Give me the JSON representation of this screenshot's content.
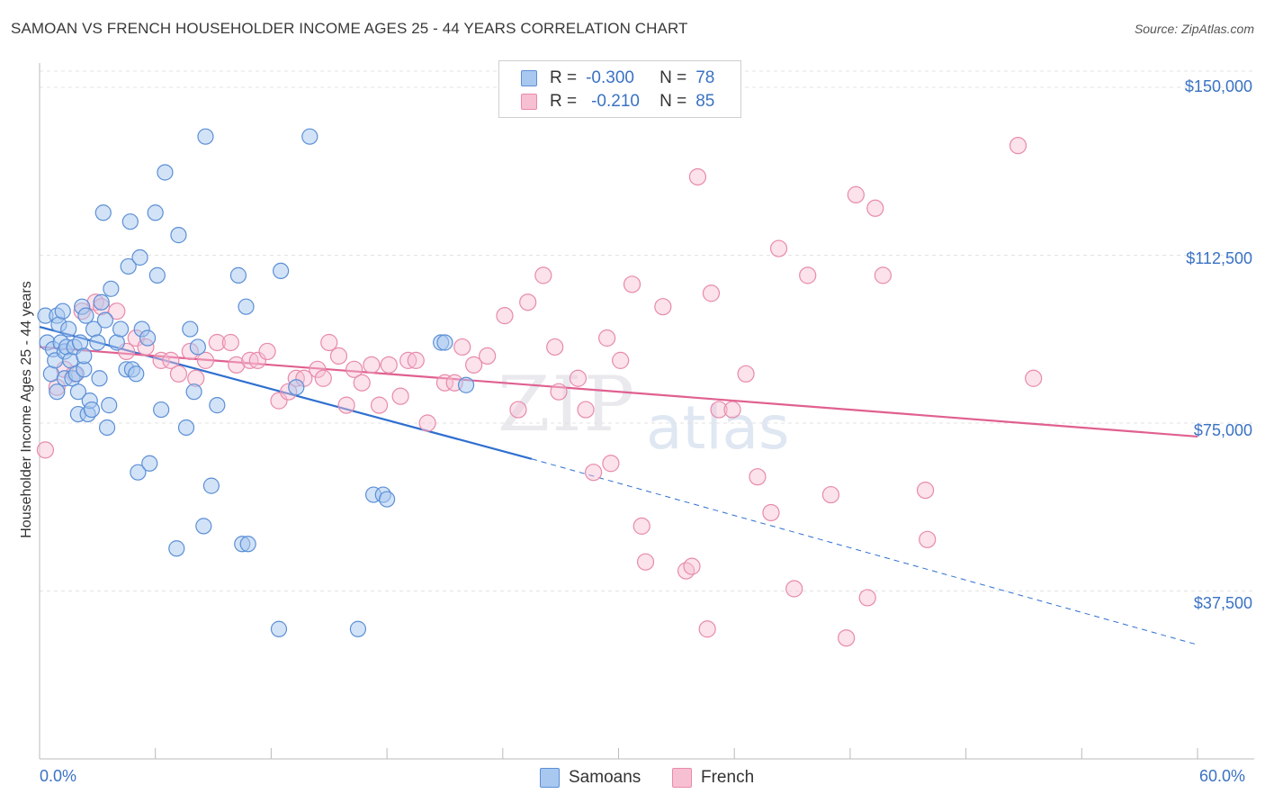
{
  "header": {
    "title": "SAMOAN VS FRENCH HOUSEHOLDER INCOME AGES 25 - 44 YEARS CORRELATION CHART",
    "source": "Source: ZipAtlas.com"
  },
  "watermark": {
    "zip": "ZIP",
    "atlas": "atlas"
  },
  "legend": {
    "samoans": {
      "r_label": "R =",
      "r_value": "-0.300",
      "n_label": "N =",
      "n_value": "78"
    },
    "french": {
      "r_label": "R =",
      "r_value": "-0.210",
      "n_label": "N =",
      "n_value": "85"
    }
  },
  "colors": {
    "samoans_fill": "#a8c8f0",
    "samoans_stroke": "#5b8fd6",
    "samoans_line": "#2f6fd0",
    "french_fill": "#f7bfd2",
    "french_stroke": "#e88aab",
    "french_line": "#e06090",
    "grid": "#e3e3e3",
    "tick_text": "#3a72c4"
  },
  "chart_data": {
    "type": "scatter",
    "title": "SAMOAN VS FRENCH HOUSEHOLDER INCOME AGES 25 - 44 YEARS CORRELATION CHART",
    "xlabel": "",
    "ylabel": "Householder Income Ages 25 - 44 years",
    "xlim": [
      0,
      60
    ],
    "ylim": [
      0,
      153000
    ],
    "x_tick_labels": [
      "0.0%",
      "60.0%"
    ],
    "y_ticks": [
      37500,
      75000,
      112500,
      150000
    ],
    "y_tick_labels": [
      "$37,500",
      "$75,000",
      "$112,500",
      "$150,000"
    ],
    "grid": true,
    "legend_position": "top-center",
    "series": [
      {
        "name": "Samoans",
        "trend": {
          "x": [
            0,
            25.5
          ],
          "y": [
            96500,
            67000
          ],
          "dashed_to": [
            60,
            25500
          ]
        },
        "points": [
          [
            0.3,
            99000
          ],
          [
            0.4,
            93000
          ],
          [
            0.6,
            86000
          ],
          [
            0.7,
            91500
          ],
          [
            0.8,
            89000
          ],
          [
            0.9,
            99000
          ],
          [
            1.0,
            97000
          ],
          [
            1.1,
            93000
          ],
          [
            1.2,
            100000
          ],
          [
            1.3,
            91000
          ],
          [
            1.3,
            85000
          ],
          [
            1.4,
            92000
          ],
          [
            1.5,
            96000
          ],
          [
            1.6,
            89000
          ],
          [
            1.7,
            85000
          ],
          [
            1.8,
            92000
          ],
          [
            1.9,
            86000
          ],
          [
            2.0,
            82000
          ],
          [
            2.0,
            77000
          ],
          [
            2.1,
            93000
          ],
          [
            2.2,
            101000
          ],
          [
            2.3,
            87000
          ],
          [
            2.3,
            90000
          ],
          [
            2.4,
            99000
          ],
          [
            2.5,
            77000
          ],
          [
            2.6,
            80000
          ],
          [
            2.7,
            78000
          ],
          [
            2.8,
            96000
          ],
          [
            3.0,
            93000
          ],
          [
            3.1,
            85000
          ],
          [
            3.2,
            102000
          ],
          [
            3.3,
            122000
          ],
          [
            3.4,
            98000
          ],
          [
            3.5,
            74000
          ],
          [
            3.6,
            79000
          ],
          [
            3.7,
            105000
          ],
          [
            4.0,
            93000
          ],
          [
            4.2,
            96000
          ],
          [
            4.5,
            87000
          ],
          [
            4.6,
            110000
          ],
          [
            4.7,
            120000
          ],
          [
            4.8,
            87000
          ],
          [
            5.0,
            86000
          ],
          [
            5.1,
            64000
          ],
          [
            5.2,
            112000
          ],
          [
            5.3,
            96000
          ],
          [
            5.6,
            94000
          ],
          [
            5.7,
            66000
          ],
          [
            6.0,
            122000
          ],
          [
            6.1,
            108000
          ],
          [
            6.3,
            78000
          ],
          [
            6.5,
            131000
          ],
          [
            7.2,
            117000
          ],
          [
            7.6,
            74000
          ],
          [
            7.8,
            96000
          ],
          [
            8.0,
            82000
          ],
          [
            8.2,
            92000
          ],
          [
            8.5,
            52000
          ],
          [
            8.6,
            139000
          ],
          [
            8.9,
            61000
          ],
          [
            9.2,
            79000
          ],
          [
            10.3,
            108000
          ],
          [
            10.5,
            48000
          ],
          [
            10.7,
            101000
          ],
          [
            10.8,
            48000
          ],
          [
            12.4,
            29000
          ],
          [
            12.5,
            109000
          ],
          [
            13.3,
            83000
          ],
          [
            14.0,
            139000
          ],
          [
            16.5,
            29000
          ],
          [
            17.3,
            59000
          ],
          [
            17.8,
            59000
          ],
          [
            18.0,
            58000
          ],
          [
            20.8,
            93000
          ],
          [
            21.0,
            93000
          ],
          [
            22.1,
            83500
          ],
          [
            0.9,
            82000
          ],
          [
            7.1,
            47000
          ]
        ]
      },
      {
        "name": "French",
        "trend": {
          "x": [
            0,
            60
          ],
          "y": [
            92000,
            72000
          ]
        },
        "points": [
          [
            0.3,
            69000
          ],
          [
            0.9,
            83000
          ],
          [
            1.3,
            87000
          ],
          [
            1.8,
            86000
          ],
          [
            2.2,
            100000
          ],
          [
            2.9,
            102000
          ],
          [
            3.2,
            101000
          ],
          [
            4.0,
            100000
          ],
          [
            4.5,
            91000
          ],
          [
            5.0,
            94000
          ],
          [
            5.5,
            92000
          ],
          [
            6.3,
            89000
          ],
          [
            6.8,
            89000
          ],
          [
            7.2,
            86000
          ],
          [
            7.8,
            91000
          ],
          [
            8.1,
            85000
          ],
          [
            8.6,
            89000
          ],
          [
            9.2,
            93000
          ],
          [
            9.9,
            93000
          ],
          [
            10.2,
            88000
          ],
          [
            10.9,
            89000
          ],
          [
            11.3,
            89000
          ],
          [
            11.8,
            91000
          ],
          [
            12.4,
            80000
          ],
          [
            12.9,
            82000
          ],
          [
            13.3,
            85000
          ],
          [
            13.7,
            85000
          ],
          [
            14.4,
            87000
          ],
          [
            14.7,
            85000
          ],
          [
            15.0,
            93000
          ],
          [
            15.5,
            90000
          ],
          [
            15.9,
            79000
          ],
          [
            16.3,
            87000
          ],
          [
            16.7,
            84000
          ],
          [
            17.2,
            88000
          ],
          [
            17.6,
            79000
          ],
          [
            18.1,
            88000
          ],
          [
            18.7,
            81000
          ],
          [
            19.1,
            89000
          ],
          [
            19.5,
            89000
          ],
          [
            20.1,
            75000
          ],
          [
            21.0,
            84000
          ],
          [
            21.5,
            84000
          ],
          [
            21.9,
            92000
          ],
          [
            22.5,
            88000
          ],
          [
            23.2,
            90000
          ],
          [
            24.1,
            99000
          ],
          [
            24.8,
            78000
          ],
          [
            25.3,
            102000
          ],
          [
            26.1,
            108000
          ],
          [
            26.7,
            92000
          ],
          [
            26.9,
            82000
          ],
          [
            27.9,
            85000
          ],
          [
            28.3,
            78000
          ],
          [
            28.7,
            64000
          ],
          [
            29.4,
            94000
          ],
          [
            29.6,
            66000
          ],
          [
            30.1,
            89000
          ],
          [
            30.7,
            106000
          ],
          [
            31.2,
            52000
          ],
          [
            31.4,
            44000
          ],
          [
            32.3,
            101000
          ],
          [
            33.5,
            42000
          ],
          [
            33.8,
            43000
          ],
          [
            34.1,
            130000
          ],
          [
            34.6,
            29000
          ],
          [
            34.8,
            104000
          ],
          [
            35.2,
            78000
          ],
          [
            35.9,
            78000
          ],
          [
            36.6,
            86000
          ],
          [
            37.2,
            63000
          ],
          [
            37.9,
            55000
          ],
          [
            38.3,
            114000
          ],
          [
            39.1,
            38000
          ],
          [
            39.8,
            108000
          ],
          [
            41.0,
            59000
          ],
          [
            41.8,
            27000
          ],
          [
            42.3,
            126000
          ],
          [
            42.9,
            36000
          ],
          [
            43.3,
            123000
          ],
          [
            43.7,
            108000
          ],
          [
            45.9,
            60000
          ],
          [
            46.0,
            49000
          ],
          [
            50.7,
            137000
          ],
          [
            51.5,
            85000
          ]
        ]
      }
    ]
  },
  "bottom_legend": {
    "samoans": "Samoans",
    "french": "French"
  },
  "x_axis": {
    "min_label": "0.0%",
    "max_label": "60.0%"
  }
}
